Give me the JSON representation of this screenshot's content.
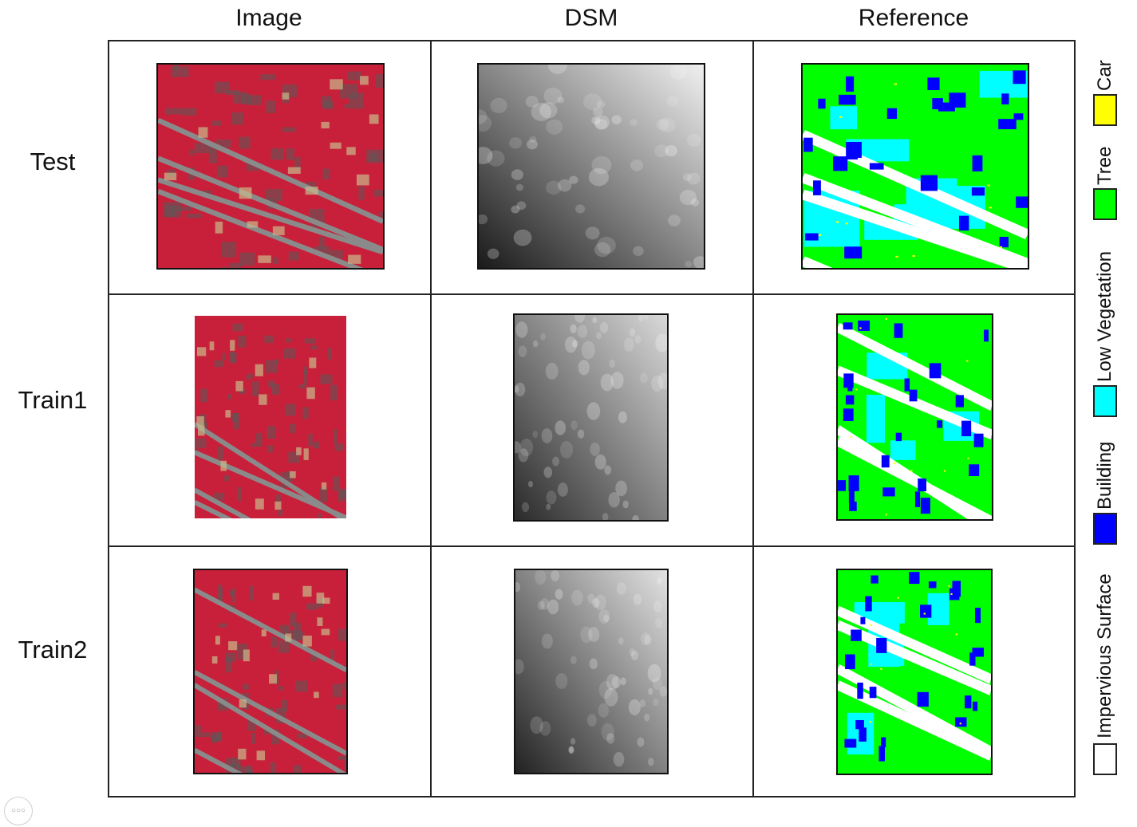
{
  "columns": {
    "image": "Image",
    "dsm": "DSM",
    "reference": "Reference"
  },
  "rows": {
    "test": "Test",
    "train1": "Train1",
    "train2": "Train2"
  },
  "legend": [
    {
      "label": "Car",
      "color": "#ffff00"
    },
    {
      "label": "Tree",
      "color": "#00ff00"
    },
    {
      "label": "Low Vegetation",
      "color": "#00ffff"
    },
    {
      "label": "Building",
      "color": "#0000ff"
    },
    {
      "label": "Impervious Surface",
      "color": "#ffffff"
    }
  ],
  "palette": {
    "ir_red": "#c8203a",
    "ir_dark": "#5a5a5a",
    "road_gray": "#8a8a8a",
    "roof_tan": "#c9b98a"
  },
  "ui": {
    "more_icon": "more-icon"
  }
}
